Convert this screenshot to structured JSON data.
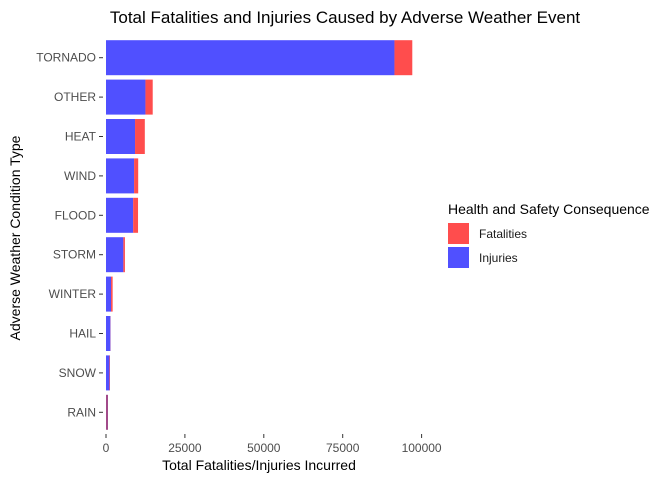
{
  "chart_data": {
    "type": "bar",
    "orientation": "horizontal",
    "stacked": true,
    "title": "Total Fatalities and Injuries Caused by Adverse Weather Event",
    "xlabel": "Total Fatalities/Injuries Incurred",
    "ylabel": "Adverse Weather Condition Type",
    "xlim": [
      0,
      111000
    ],
    "x_ticks": [
      0,
      25000,
      50000,
      75000,
      100000
    ],
    "x_tick_labels": [
      "0",
      "25000",
      "50000",
      "75000",
      "100000"
    ],
    "grid": false,
    "legend": {
      "title": "Health and Safety Consequence",
      "placement": "right",
      "entries": [
        "Fatalities",
        "Injuries"
      ]
    },
    "categories": [
      "TORNADO",
      "OTHER",
      "HEAT",
      "WIND",
      "FLOOD",
      "STORM",
      "WINTER",
      "HAIL",
      "SNOW",
      "RAIN"
    ],
    "series": [
      {
        "name": "Injuries",
        "color": "#5050ff",
        "values": [
          91400,
          12500,
          9200,
          8900,
          8600,
          5500,
          1600,
          1400,
          1100,
          300
        ]
      },
      {
        "name": "Fatalities",
        "color": "#ff4d4d",
        "values": [
          5650,
          2300,
          3100,
          1300,
          1550,
          500,
          500,
          50,
          160,
          120
        ]
      }
    ],
    "overlap_color": "#a24a8a"
  }
}
